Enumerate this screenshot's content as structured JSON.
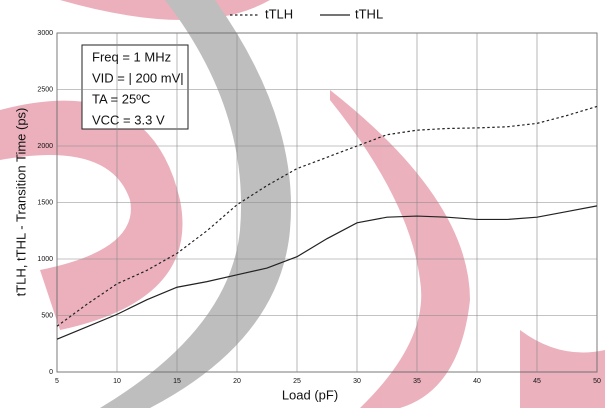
{
  "chart_data": {
    "type": "line",
    "x_label": "Load (pF)",
    "y_label": "tTLH, tTHL - Transition Time (ps)",
    "annotations": [
      "Freq = 1 MHz",
      "VID = | 200 mV|",
      "TA = 25ºC",
      "VCC = 3.3 V"
    ],
    "x": [
      5,
      7.5,
      10,
      12.5,
      15,
      17.5,
      20,
      22.5,
      25,
      27.5,
      30,
      32.5,
      35,
      37.5,
      40,
      42.5,
      45,
      47.5,
      50
    ],
    "series": [
      {
        "name": "tTLH",
        "color": "#222222",
        "dash": true,
        "values": [
          405,
          600,
          780,
          900,
          1050,
          1250,
          1480,
          1650,
          1800,
          1900,
          2000,
          2100,
          2140,
          2155,
          2160,
          2170,
          2200,
          2270,
          2350
        ]
      },
      {
        "name": "tTHL",
        "color": "#222222",
        "dash": false,
        "values": [
          290,
          400,
          510,
          640,
          750,
          800,
          860,
          920,
          1020,
          1180,
          1320,
          1370,
          1380,
          1370,
          1350,
          1350,
          1370,
          1420,
          1470
        ]
      }
    ],
    "xlim": [
      5,
      50
    ],
    "xticks": [
      5,
      10,
      15,
      20,
      25,
      30,
      35,
      40,
      45,
      50
    ],
    "ylim": [
      0,
      3000
    ],
    "yticks": [
      0,
      500,
      1000,
      1500,
      2000,
      2500,
      3000
    ],
    "grid": true
  }
}
